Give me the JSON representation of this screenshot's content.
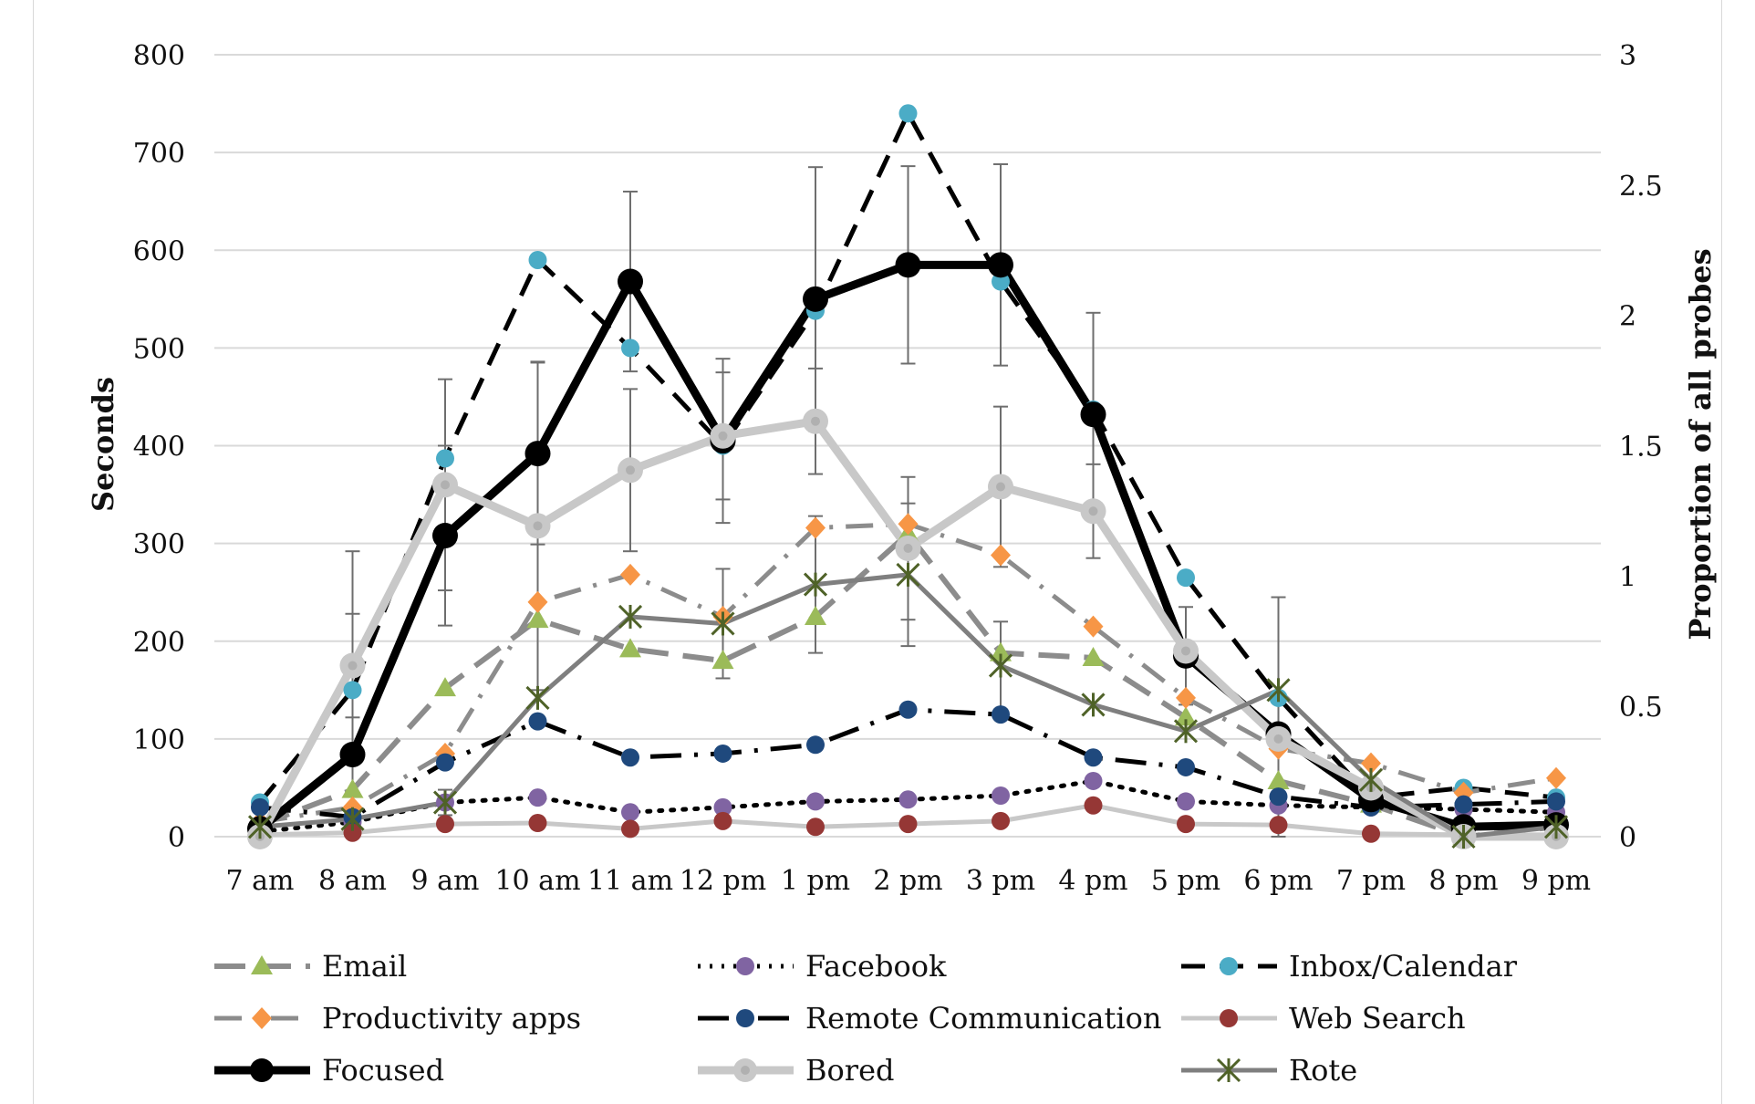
{
  "chart_data": {
    "type": "line",
    "title": "",
    "xlabel": "",
    "ylabel": "Seconds",
    "y2label": "Proportion of all probes",
    "ylim": [
      0,
      800
    ],
    "y2lim": [
      0,
      3
    ],
    "yticks": [
      "0",
      "100",
      "200",
      "300",
      "400",
      "500",
      "600",
      "700",
      "800"
    ],
    "y2ticks": [
      "0",
      "0.5",
      "1",
      "1.5",
      "2",
      "2.5",
      "3"
    ],
    "categories": [
      "7 am",
      "8 am",
      "9 am",
      "10 am",
      "11 am",
      "12 pm",
      "1 pm",
      "2 pm",
      "3 pm",
      "4 pm",
      "5 pm",
      "6 pm",
      "7 pm",
      "8 pm",
      "9 pm"
    ],
    "grid": true,
    "legend_position": "bottom",
    "series": [
      {
        "name": "Email",
        "axis": "left",
        "color": "#8c8c8c",
        "markerColor": "#9bbb59",
        "marker": "triangle",
        "dash": "long-dash",
        "values": [
          12,
          48,
          152,
          222,
          192,
          180,
          225,
          310,
          188,
          183,
          122,
          57,
          33,
          0,
          10
        ]
      },
      {
        "name": "Facebook",
        "axis": "left",
        "color": "#000000",
        "markerColor": "#8064a2",
        "marker": "circle",
        "dash": "dot",
        "values": [
          5,
          15,
          35,
          40,
          25,
          30,
          36,
          38,
          42,
          57,
          36,
          32,
          30,
          28,
          25
        ]
      },
      {
        "name": "Inbox/Calendar",
        "axis": "left",
        "color": "#000000",
        "markerColor": "#4bacc6",
        "marker": "circle",
        "dash": "dash",
        "values": [
          35,
          150,
          387,
          590,
          500,
          400,
          538,
          740,
          568,
          437,
          265,
          142,
          40,
          50,
          40
        ]
      },
      {
        "name": "Productivity apps",
        "axis": "left",
        "color": "#8c8c8c",
        "markerColor": "#f79646",
        "marker": "diamond",
        "dash": "dash-dot",
        "values": [
          15,
          30,
          85,
          240,
          268,
          225,
          316,
          320,
          288,
          215,
          142,
          90,
          75,
          45,
          60
        ]
      },
      {
        "name": "Remote Communication",
        "axis": "left",
        "color": "#000000",
        "markerColor": "#1f497d",
        "marker": "circle",
        "dash": "long-dash-dot",
        "values": [
          30,
          20,
          76,
          118,
          81,
          85,
          94,
          130,
          125,
          81,
          71,
          41,
          30,
          33,
          36
        ]
      },
      {
        "name": "Web Search",
        "axis": "left",
        "color": "#c8c8c8",
        "markerColor": "#953735",
        "marker": "circle",
        "dash": "solid",
        "values": [
          2,
          4,
          13,
          14,
          8,
          16,
          10,
          13,
          16,
          32,
          13,
          12,
          3,
          2,
          2
        ]
      },
      {
        "name": "Focused",
        "axis": "left",
        "color": "#000000",
        "markerColor": "#000000",
        "marker": "circle-lg",
        "dash": "solid-thick",
        "values": [
          8,
          84,
          308,
          392,
          568,
          405,
          550,
          585,
          585,
          432,
          185,
          105,
          38,
          10,
          12
        ],
        "error": [
          null,
          208,
          92,
          93,
          92,
          84,
          135,
          101,
          103,
          104,
          50,
          140,
          null,
          null,
          null
        ]
      },
      {
        "name": "Bored",
        "axis": "left",
        "color": "#c8c8c8",
        "markerColor": "#c8c8c8",
        "marker": "circle-lg",
        "dash": "solid-thick",
        "values": [
          0,
          175,
          360,
          318,
          375,
          410,
          425,
          295,
          358,
          333,
          190,
          100,
          50,
          0,
          0
        ],
        "error": [
          null,
          53,
          108,
          168,
          83,
          65,
          54,
          73,
          82,
          48,
          null,
          null,
          null,
          null,
          null
        ]
      },
      {
        "name": "Rote",
        "axis": "left",
        "color": "#7f7f7f",
        "markerColor": "#4f6228",
        "marker": "asterisk",
        "dash": "solid",
        "values": [
          10,
          18,
          35,
          142,
          225,
          218,
          258,
          268,
          175,
          135,
          108,
          150,
          58,
          0,
          10
        ],
        "error": [
          null,
          null,
          13,
          null,
          null,
          56,
          70,
          73,
          45,
          null,
          null,
          null,
          null,
          null,
          null
        ]
      }
    ]
  }
}
